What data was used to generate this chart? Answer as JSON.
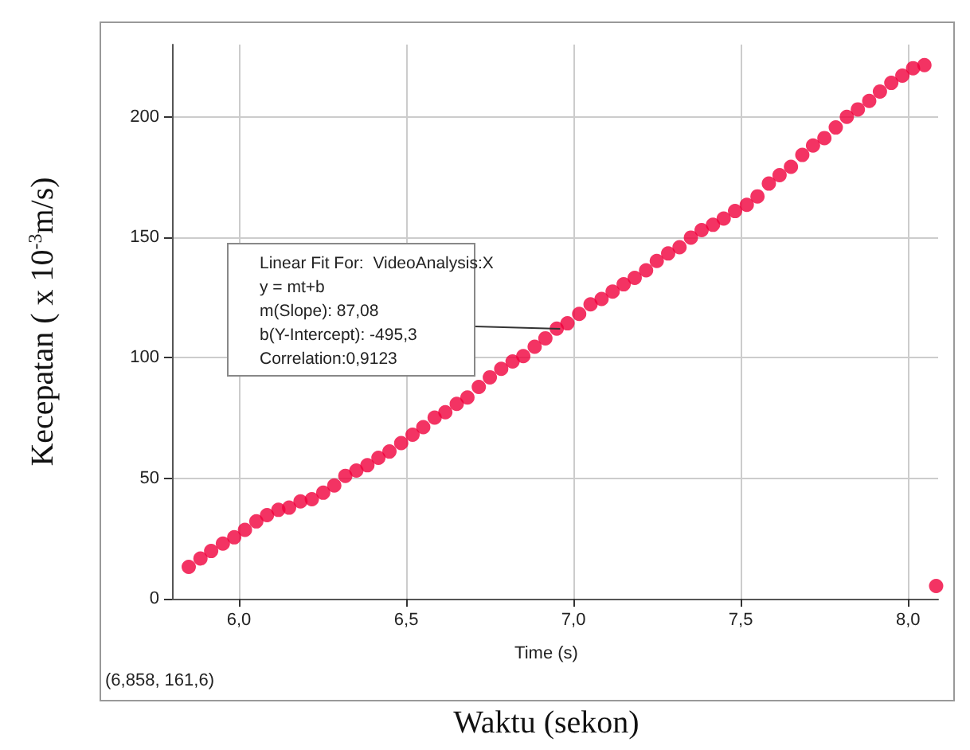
{
  "chart_data": {
    "type": "scatter",
    "xlabel": "Waktu (sekon)",
    "ylabel": "Kecepatan ( x 10$^{-3}$m/s)",
    "x": [
      5.85,
      5.885,
      5.917,
      5.952,
      5.986,
      6.018,
      6.052,
      6.084,
      6.118,
      6.15,
      6.184,
      6.218,
      6.252,
      6.285,
      6.318,
      6.351,
      6.384,
      6.417,
      6.45,
      6.485,
      6.519,
      6.551,
      6.585,
      6.617,
      6.651,
      6.683,
      6.717,
      6.75,
      6.784,
      6.818,
      6.85,
      6.884,
      6.916,
      6.95,
      6.982,
      7.017,
      7.051,
      7.084,
      7.117,
      7.15,
      7.183,
      7.217,
      7.249,
      7.283,
      7.317,
      7.351,
      7.383,
      7.417,
      7.449,
      7.483,
      7.518,
      7.55,
      7.584,
      7.616,
      7.65,
      7.684,
      7.716,
      7.75,
      7.784,
      7.817,
      7.85,
      7.884,
      7.916,
      7.95,
      7.983,
      8.015,
      8.049,
      8.084
    ],
    "series": [
      {
        "color": "#f0003c",
        "values": [
          13.2,
          16.7,
          19.8,
          22.9,
          25.5,
          28.6,
          32.1,
          34.7,
          36.9,
          37.8,
          40.4,
          41.3,
          44.0,
          47.0,
          51.0,
          53.2,
          55.4,
          58.5,
          61.1,
          64.6,
          68.1,
          71.2,
          75.2,
          77.4,
          80.9,
          83.5,
          87.9,
          91.9,
          95.4,
          98.5,
          100.7,
          104.6,
          108.1,
          112.1,
          114.3,
          118.2,
          122.2,
          124.4,
          127.5,
          130.5,
          133.2,
          136.3,
          140.2,
          143.3,
          145.9,
          149.9,
          153.0,
          155.2,
          157.8,
          160.9,
          163.5,
          167.0,
          172.3,
          175.8,
          179.3,
          184.2,
          188.1,
          191.2,
          195.6,
          200.0,
          203.1,
          206.6,
          210.5,
          214.1,
          217.1,
          220.2,
          221.5,
          5.3
        ]
      }
    ],
    "xlim": [
      5.8,
      8.09
    ],
    "xticks": [
      {
        "value": 6.0,
        "label": "6,0"
      },
      {
        "value": 6.5,
        "label": "6,5"
      },
      {
        "value": 7.0,
        "label": "7,0"
      },
      {
        "value": 7.5,
        "label": "7,5"
      },
      {
        "value": 8.0,
        "label": "8,0"
      }
    ],
    "ylim": [
      0,
      230
    ],
    "yticks": [
      0,
      50,
      100,
      150,
      200
    ],
    "grid": true,
    "marker": "circle",
    "annotations": [
      {
        "text": "Linear Fit For:  VideoAnalysis:X\ny = mt+b\nm(Slope): 87,08\nb(Y-Intercept): -495,3\nCorrelation:0,9123",
        "x": 6.96,
        "y": 112
      },
      "Time (s)",
      "(6,858, 161,6)"
    ]
  }
}
